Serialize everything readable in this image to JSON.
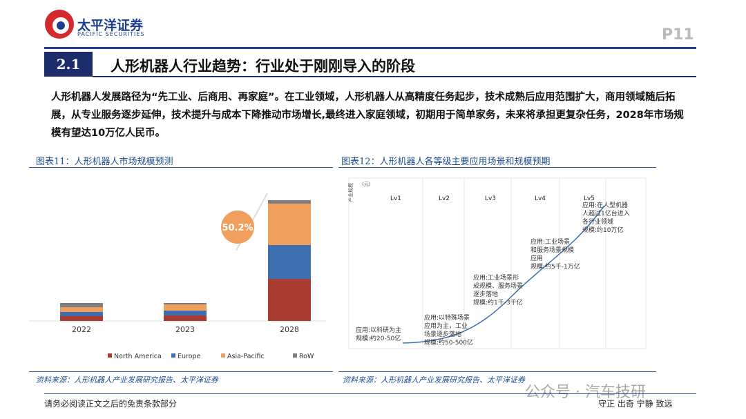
{
  "header": {
    "brand": "太平洋证券",
    "brand_en": "PACIFIC SECURITIES",
    "page": "P11"
  },
  "section": {
    "number": "2.1",
    "title": "人形机器人行业趋势：行业处于刚刚导入的阶段"
  },
  "body": "人形机器人发展路径为“先工业、后商用、再家庭”。在工业领域，人形机器人从高精度任务起步，技术成熟后应用范围扩大，商用领域随后拓展，从专业服务逐步延伸，技术提升与成本下降推动市场增长,最终进入家庭领域，初期用于简单家务，未来将承担更复杂任务，2028年市场规模有望达10万亿人民币。",
  "figure11": {
    "title": "图表11：人形机器人市场规模预测",
    "source": "资料来源：人形机器人产业发展研究报告、太平洋证券",
    "chart_data": {
      "type": "bar",
      "stacked": true,
      "categories": [
        "2022",
        "2023",
        "2028"
      ],
      "annotation": "50.2%",
      "series": [
        {
          "name": "North America",
          "color": "#a93b32",
          "values": [
            7,
            8,
            61
          ]
        },
        {
          "name": "Europe",
          "color": "#3e6fb1",
          "values": [
            6,
            7,
            49
          ]
        },
        {
          "name": "Asia-Pacific",
          "color": "#f0a05c",
          "values": [
            7,
            9,
            60
          ]
        },
        {
          "name": "RoW",
          "color": "#7f7f7f",
          "values": [
            6,
            2,
            5
          ]
        }
      ]
    }
  },
  "figure12": {
    "title": "图表12：人形机器人各等级主要应用场景和规模预期",
    "source": "资料来源：人形机器人产业发展研究报告、太平洋证券",
    "y_label": "产业规模",
    "y_unit": "(元)",
    "levels": [
      "Lv1",
      "Lv2",
      "Lv3",
      "Lv4",
      "Lv5"
    ],
    "annotations": [
      [
        "应用:以科研为主",
        "规模:约20-50亿"
      ],
      [
        "应用:以特殊场景",
        "应用为主，工业",
        "场景逐步落地",
        "规模:约50-500亿"
      ],
      [
        "应用:工业场景形",
        "成规模、服务场景",
        "逐步落地",
        "规模:约1千-3千亿"
      ],
      [
        "应用:工业场景",
        "和服务场景规模",
        "应用",
        "规模:约5千-1万亿"
      ],
      [
        "应用:在人型机器",
        "人超过1亿台进入",
        "各行业领域",
        "规模:约10万亿"
      ]
    ]
  },
  "footer": {
    "disclaimer": "请务必阅读正文之后的免责条款部分",
    "motto": "守正 出奇 宁静 致远",
    "watermark": "公众号 · 汽车技研"
  }
}
